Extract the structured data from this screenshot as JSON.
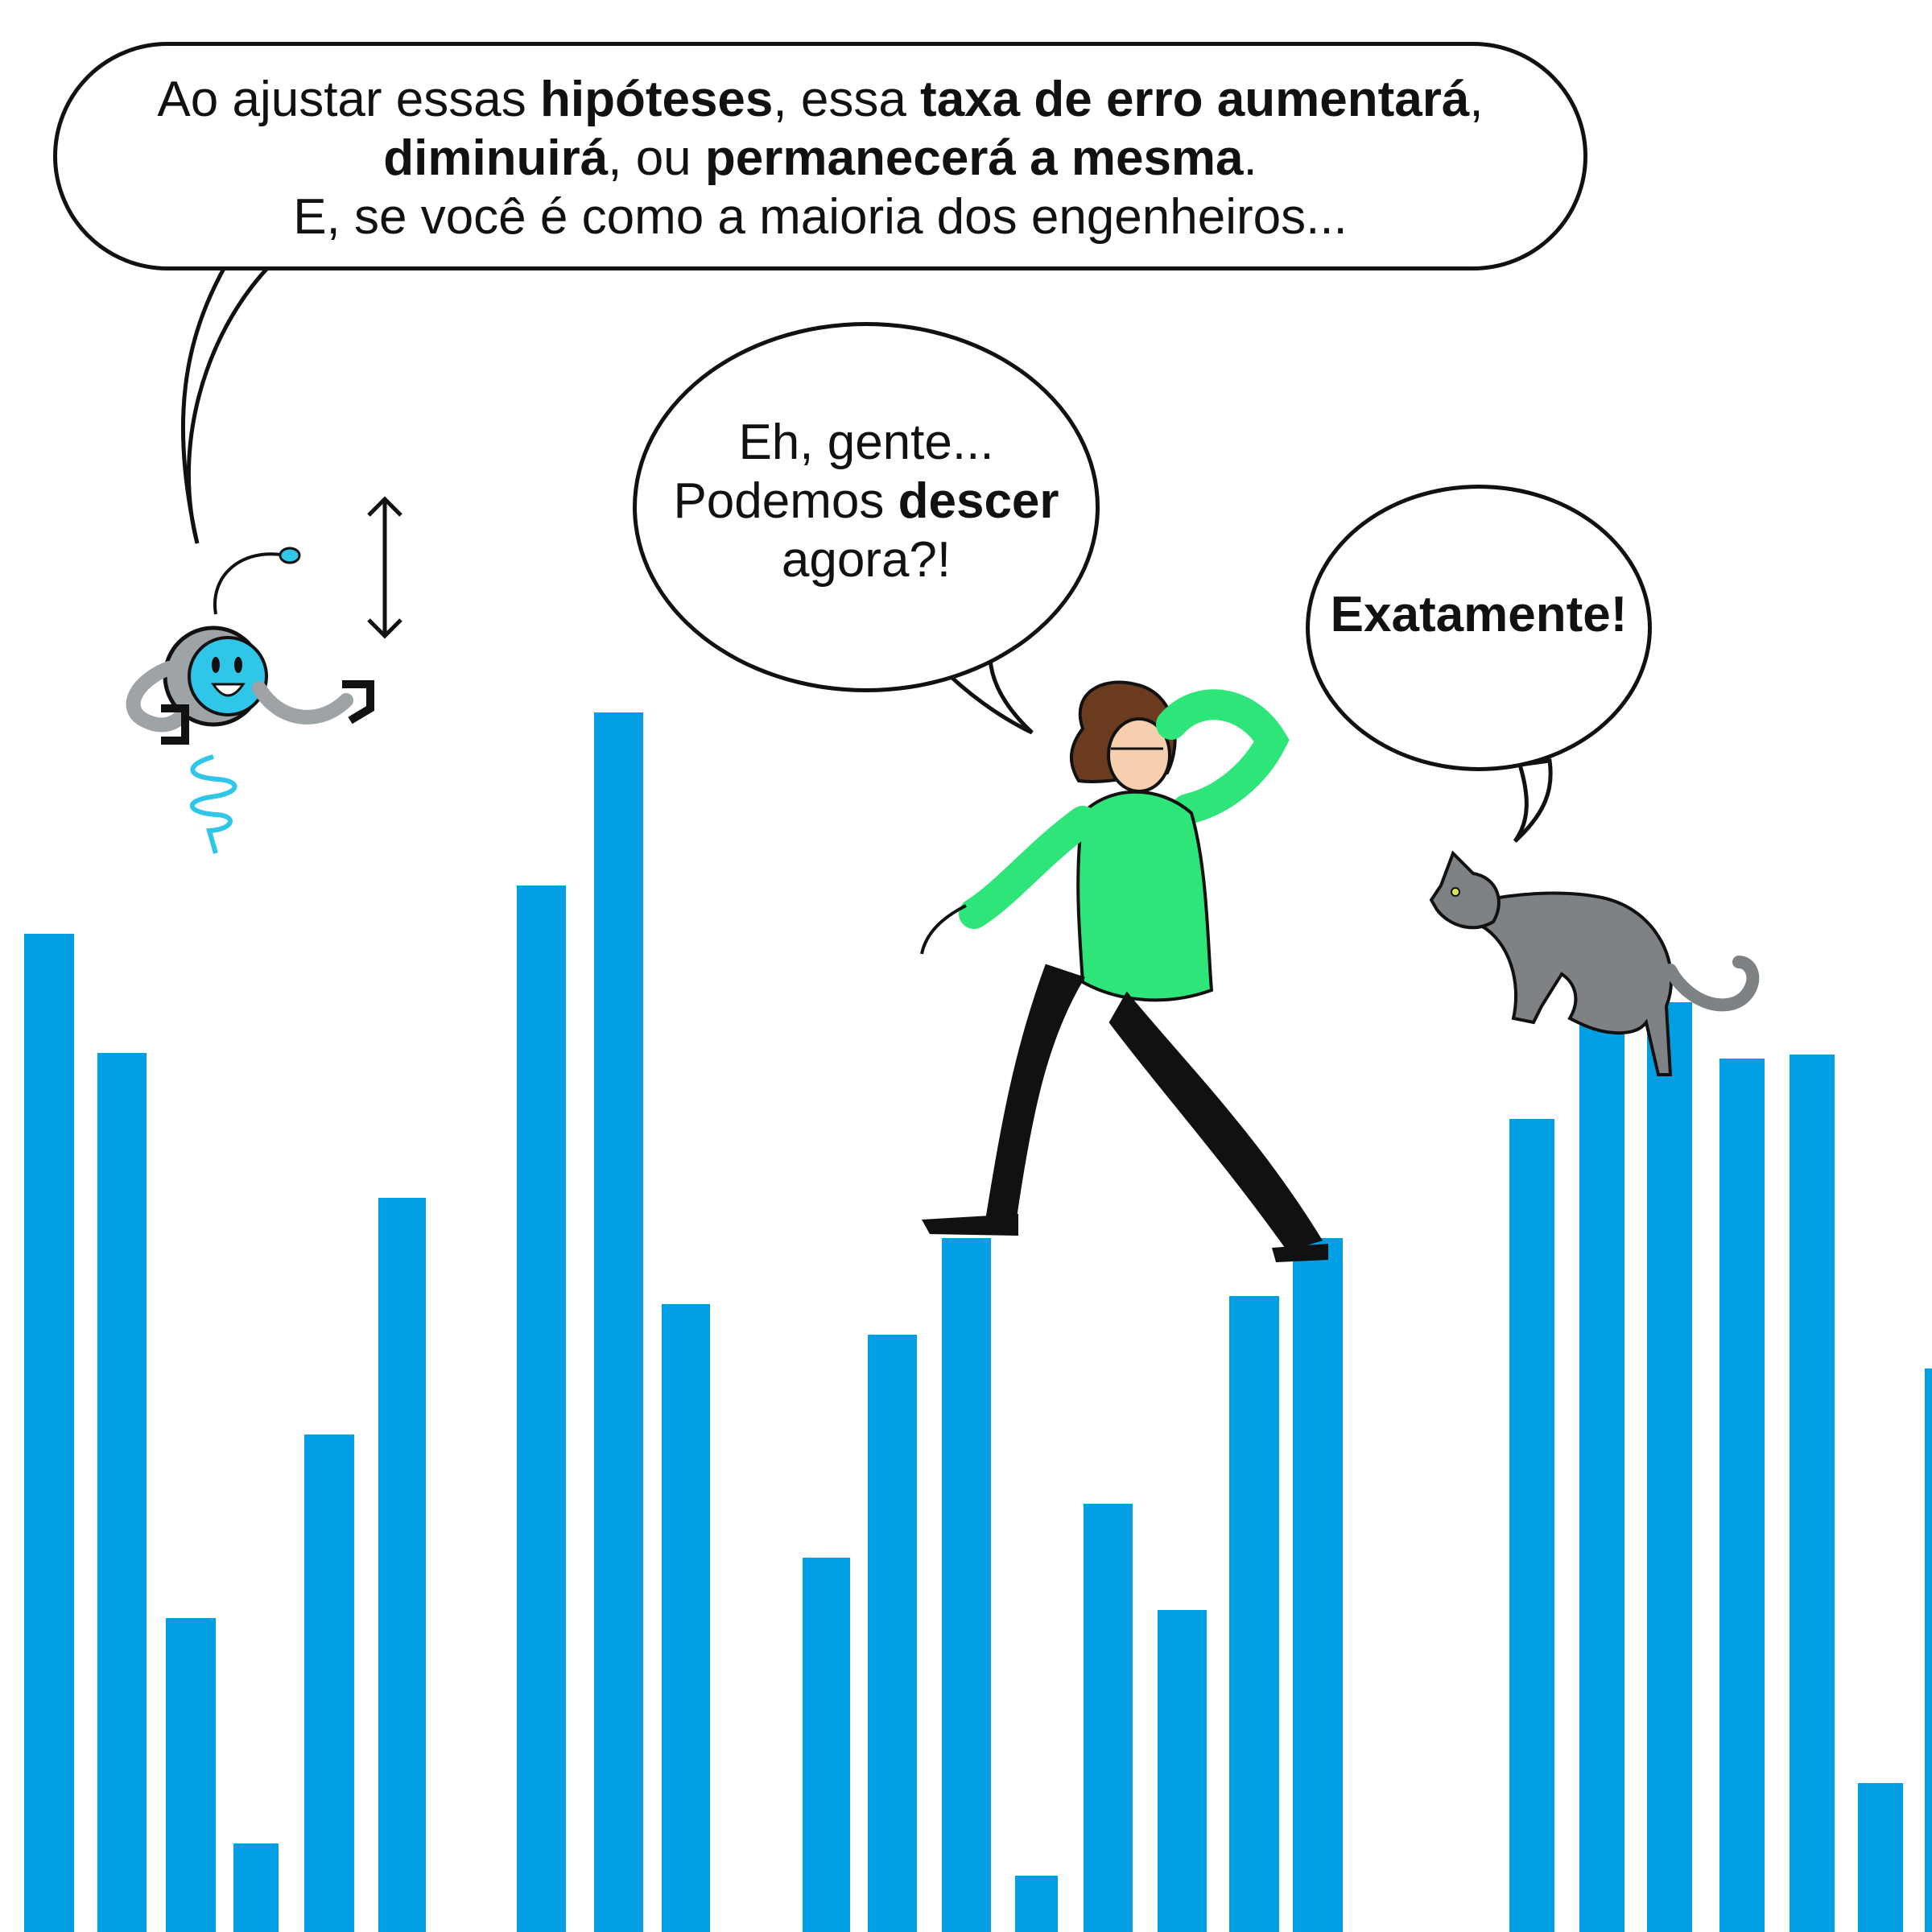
{
  "captions": {
    "robot": {
      "line1": [
        "Ao ajustar essas ",
        "hipóteses",
        ", essa ",
        "taxa de erro aumentará",
        ","
      ],
      "line2": [
        "diminuirá",
        ", ou ",
        "permanecerá a mesma",
        "."
      ],
      "line3": "E, se você é como a maioria dos engenheiros..."
    },
    "woman": {
      "line1": "Eh, gente...",
      "line2": [
        "Podemos ",
        "descer"
      ],
      "line3": "agora?!"
    },
    "cat": {
      "line1": "Exatamente!"
    }
  },
  "bars": {
    "color": "#009fe3",
    "values": [
      1240,
      1092,
      390,
      110,
      618,
      912,
      1300,
      1515,
      780,
      465,
      742,
      862,
      70,
      532,
      400,
      790,
      862,
      1010,
      1155,
      1155,
      1085,
      1090,
      185,
      700
    ]
  },
  "colors": {
    "robot_accent": "#2fc6e8",
    "robot_body": "#9ea3a6",
    "shirt": "#2ee57a",
    "pants": "#111111",
    "cat": "#7f8285"
  }
}
